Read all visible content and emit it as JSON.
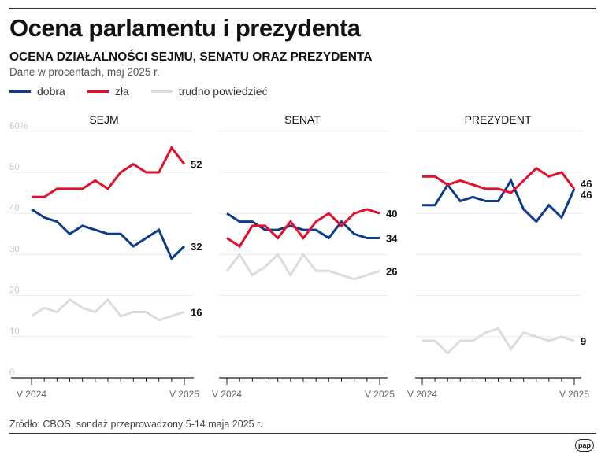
{
  "header": {
    "title": "Ocena parlamentu i prezydenta",
    "subtitle": "OCENA DZIAŁALNOŚCI SEJMU, SENATU ORAZ PREZYDENTA",
    "note": "Dane w procentach, maj 2025 r."
  },
  "legend": [
    {
      "label": "dobra",
      "color": "#0d3c8c"
    },
    {
      "label": "zła",
      "color": "#e3102b"
    },
    {
      "label": "trudno powiedzieć",
      "color": "#dcdcdc"
    }
  ],
  "footer": {
    "source": "Źródło: CBOS, sondaż przeprowadzony 5-14 maja 2025 r.",
    "logo": "pap"
  },
  "chart_data": [
    {
      "type": "line",
      "title": "SEJM",
      "ylim": [
        0,
        60
      ],
      "yticks": [
        "0",
        "10",
        "20",
        "30",
        "40",
        "50",
        "60%"
      ],
      "xtick_labels": [
        "V 2024",
        "V 2025"
      ],
      "grid": true,
      "series": [
        {
          "name": "dobra",
          "values": [
            41,
            39,
            38,
            35,
            37,
            36,
            35,
            35,
            32,
            34,
            36,
            29,
            32
          ],
          "end_label": "32"
        },
        {
          "name": "zła",
          "values": [
            44,
            44,
            46,
            46,
            46,
            48,
            46,
            50,
            52,
            50,
            50,
            56,
            52
          ],
          "end_label": "52"
        },
        {
          "name": "trudno powiedzieć",
          "values": [
            15,
            17,
            16,
            19,
            17,
            16,
            19,
            15,
            16,
            16,
            14,
            15,
            16
          ],
          "end_label": "16"
        }
      ]
    },
    {
      "type": "line",
      "title": "SENAT",
      "ylim": [
        0,
        60
      ],
      "xtick_labels": [
        "V 2024",
        "V 2025"
      ],
      "grid": true,
      "series": [
        {
          "name": "dobra",
          "values": [
            40,
            38,
            38,
            36,
            36,
            37,
            36,
            36,
            34,
            38,
            35,
            34,
            34
          ],
          "end_label": "34"
        },
        {
          "name": "zła",
          "values": [
            34,
            32,
            37,
            37,
            34,
            38,
            34,
            38,
            40,
            37,
            40,
            41,
            40
          ],
          "end_label": "40"
        },
        {
          "name": "trudno powiedzieć",
          "values": [
            26,
            30,
            25,
            27,
            30,
            25,
            30,
            26,
            26,
            25,
            24,
            25,
            26
          ],
          "end_label": "26"
        }
      ]
    },
    {
      "type": "line",
      "title": "PREZYDENT",
      "ylim": [
        0,
        60
      ],
      "xtick_labels": [
        "V 2024",
        "V 2025"
      ],
      "grid": true,
      "series": [
        {
          "name": "dobra",
          "values": [
            42,
            42,
            47,
            43,
            44,
            43,
            43,
            48,
            41,
            38,
            42,
            39,
            46
          ],
          "end_label": "46"
        },
        {
          "name": "zła",
          "values": [
            49,
            49,
            47,
            48,
            47,
            46,
            46,
            45,
            48,
            51,
            49,
            50,
            46
          ],
          "end_label": "46"
        },
        {
          "name": "trudno powiedzieć",
          "values": [
            9,
            9,
            6,
            9,
            9,
            11,
            12,
            7,
            11,
            10,
            9,
            10,
            9
          ],
          "end_label": "9"
        }
      ]
    }
  ]
}
